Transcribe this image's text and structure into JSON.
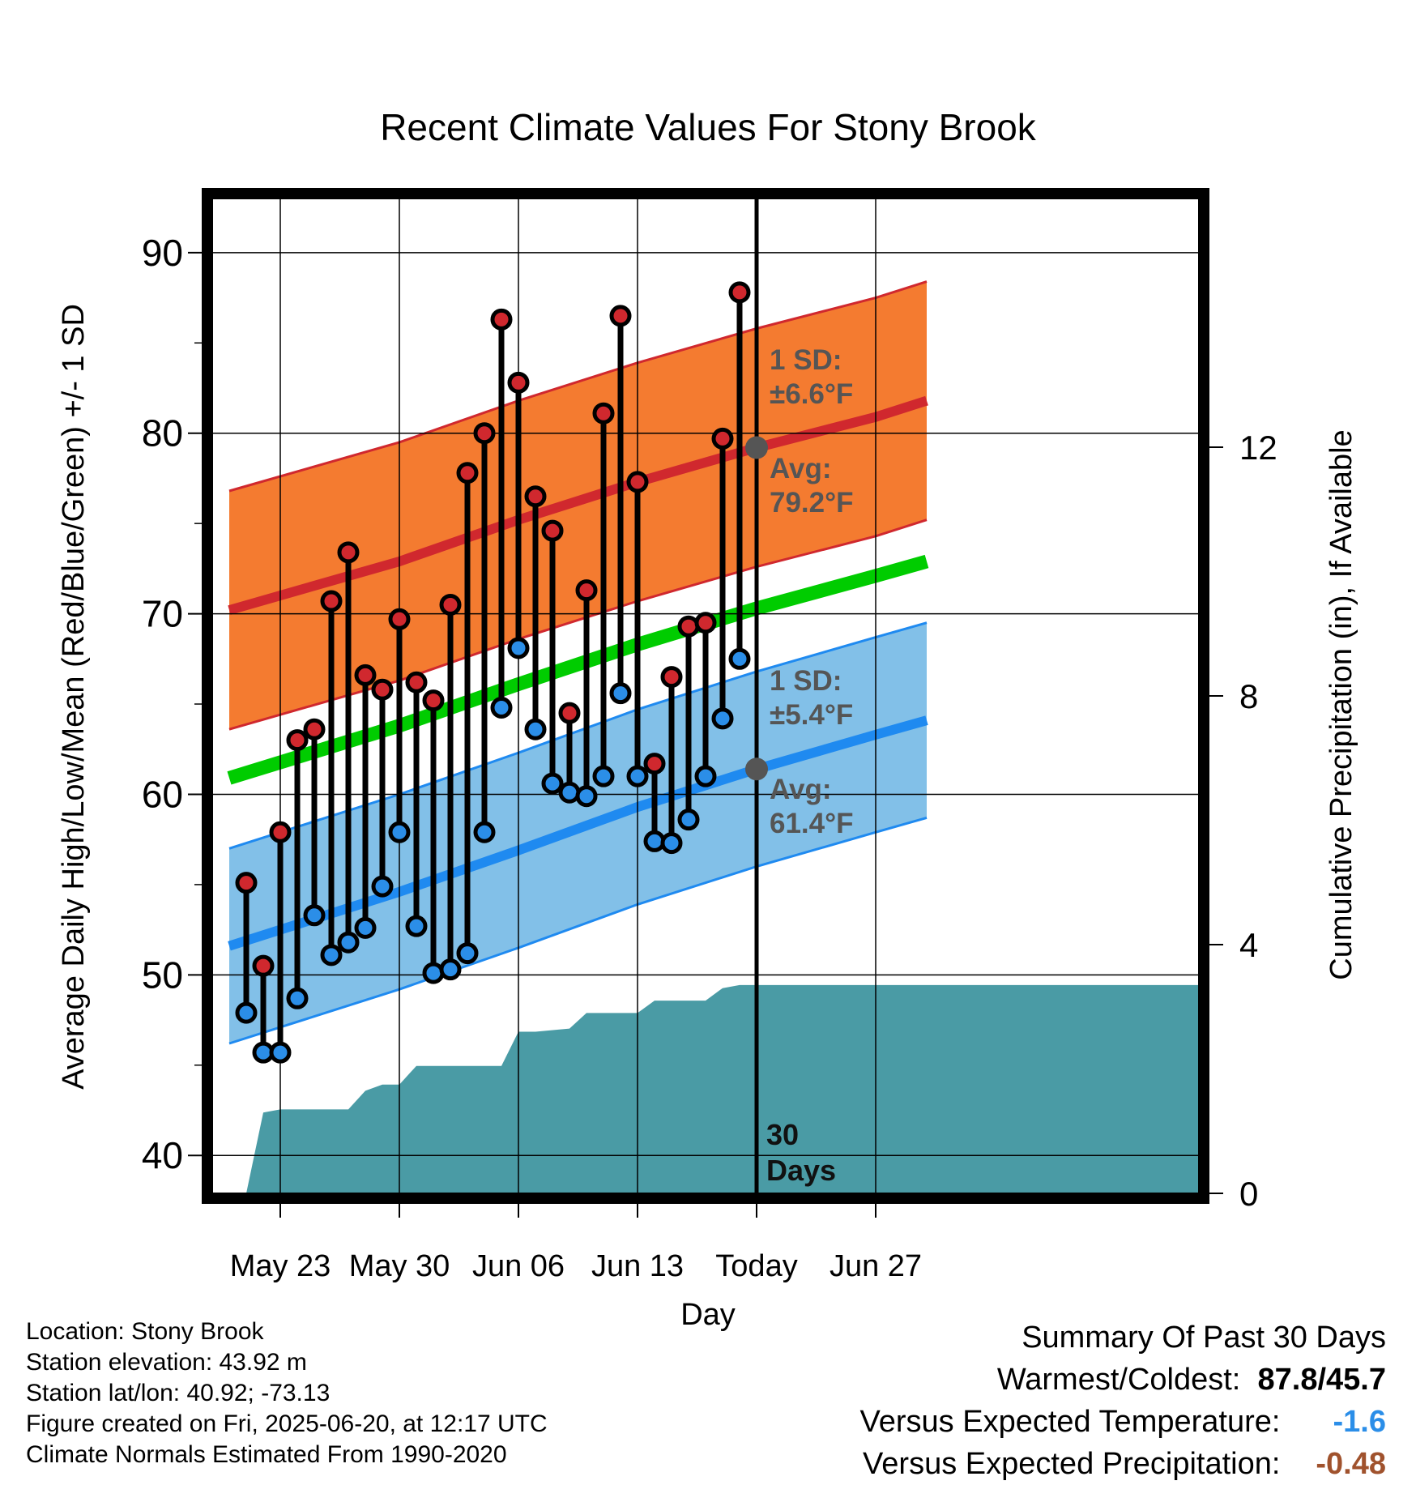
{
  "chart_data": {
    "type": "line",
    "title": "Recent Climate Values For Stony Brook",
    "xlabel": "Day",
    "ylabel": "Average Daily High/Low/Mean (Red/Blue/Green) +/- 1 SD",
    "y2label": "Cumulative Precipitation (in), If Available",
    "ylim": [
      37.9,
      93.0
    ],
    "y2lim": [
      0,
      16
    ],
    "xlim": [
      -4,
      54
    ],
    "yticks": [
      40,
      50,
      60,
      70,
      80,
      90
    ],
    "y2ticks": [
      0,
      4,
      8,
      12
    ],
    "xticks": [
      {
        "day": 0,
        "label": "May 23"
      },
      {
        "day": 7,
        "label": "May 30"
      },
      {
        "day": 14,
        "label": "Jun 06"
      },
      {
        "day": 21,
        "label": "Jun 13"
      },
      {
        "day": 28,
        "label": "Today"
      },
      {
        "day": 35,
        "label": "Jun 27"
      }
    ],
    "today_day": 28,
    "grid": true,
    "window_label": "30 Days",
    "normal_high": {
      "x": [
        -3,
        7,
        14,
        21,
        28,
        35,
        38
      ],
      "mean": [
        70.2,
        72.9,
        75.2,
        77.3,
        79.2,
        80.9,
        81.8
      ],
      "sd": 6.6
    },
    "normal_low": {
      "x": [
        -3,
        7,
        14,
        21,
        28,
        35,
        38
      ],
      "mean": [
        51.6,
        54.6,
        56.9,
        59.3,
        61.4,
        63.3,
        64.1
      ],
      "sd": 5.4
    },
    "normal_mean": {
      "x": [
        -3,
        7,
        14,
        21,
        28,
        35,
        38
      ],
      "values": [
        60.9,
        63.8,
        66.1,
        68.3,
        70.3,
        72.1,
        72.9
      ]
    },
    "annotations": {
      "high_sd": [
        "1 SD:",
        "±6.6°F"
      ],
      "high_avg": [
        "Avg:",
        "79.2°F"
      ],
      "low_sd": [
        "1 SD:",
        "±5.4°F"
      ],
      "low_avg": [
        "Avg:",
        "61.4°F"
      ]
    },
    "series": [
      {
        "name": "High",
        "color": "#d0282e",
        "x": [
          -2,
          -1,
          0,
          1,
          2,
          3,
          4,
          5,
          6,
          7,
          8,
          9,
          10,
          11,
          12,
          13,
          14,
          15,
          16,
          17,
          18,
          19,
          20,
          21,
          22,
          23,
          24,
          25,
          26,
          27
        ],
        "values": [
          55.1,
          50.5,
          57.9,
          63.0,
          63.6,
          70.7,
          73.4,
          66.6,
          65.8,
          69.7,
          66.2,
          65.2,
          70.5,
          77.8,
          80.0,
          86.3,
          82.8,
          76.5,
          74.6,
          64.5,
          71.3,
          81.1,
          86.5,
          77.3,
          61.7,
          66.5,
          69.3,
          69.5,
          79.7,
          87.8
        ]
      },
      {
        "name": "Low",
        "color": "#2b8ee8",
        "x": [
          -2,
          -1,
          0,
          1,
          2,
          3,
          4,
          5,
          6,
          7,
          8,
          9,
          10,
          11,
          12,
          13,
          14,
          15,
          16,
          17,
          18,
          19,
          20,
          21,
          22,
          23,
          24,
          25,
          26,
          27
        ],
        "values": [
          47.9,
          45.7,
          45.7,
          48.7,
          53.3,
          51.1,
          51.8,
          52.6,
          54.9,
          57.9,
          52.7,
          50.1,
          50.3,
          51.2,
          57.9,
          64.8,
          68.1,
          63.6,
          60.6,
          60.1,
          59.9,
          61.0,
          65.6,
          61.0,
          57.4,
          57.3,
          58.6,
          61.0,
          64.2,
          67.5
        ]
      },
      {
        "name": "Cumulative Precipitation",
        "color": "#4a9ba5",
        "x": [
          -2,
          -1,
          0,
          2,
          4,
          5,
          6,
          7,
          8,
          13,
          14,
          15,
          17,
          18,
          21,
          22,
          25,
          26,
          27,
          28,
          38
        ],
        "values": [
          0,
          1.3,
          1.35,
          1.35,
          1.35,
          1.65,
          1.75,
          1.75,
          2.05,
          2.05,
          2.6,
          2.6,
          2.65,
          2.9,
          2.9,
          3.1,
          3.1,
          3.3,
          3.35,
          3.35,
          3.35
        ]
      }
    ]
  },
  "info": {
    "location": "Location: Stony Brook",
    "elevation": "Station elevation: 43.92 m",
    "latlon": "Station lat/lon: 40.92; -73.13",
    "created": "Figure created on Fri, 2025-06-20, at 12:17 UTC",
    "normals": "Climate Normals Estimated From 1990-2020"
  },
  "summary": {
    "title": "Summary Of Past 30 Days",
    "warmest_label": "Warmest/Coldest:",
    "warmest_value": "87.8",
    "coldest_value": "45.7",
    "temp_label": "Versus Expected Temperature:",
    "temp_value": "-1.6",
    "temp_color": "#2b8ee8",
    "precip_label": "Versus Expected Precipitation:",
    "precip_value": "-0.48",
    "precip_color": "#a0522d"
  },
  "colors": {
    "high_band": "#f47b30",
    "high_line": "#d0282e",
    "low_band": "#82c0e8",
    "low_line": "#1f8af0",
    "mean_line": "#00cc00",
    "precip": "#4a9ba5",
    "annotation": "#555555"
  }
}
